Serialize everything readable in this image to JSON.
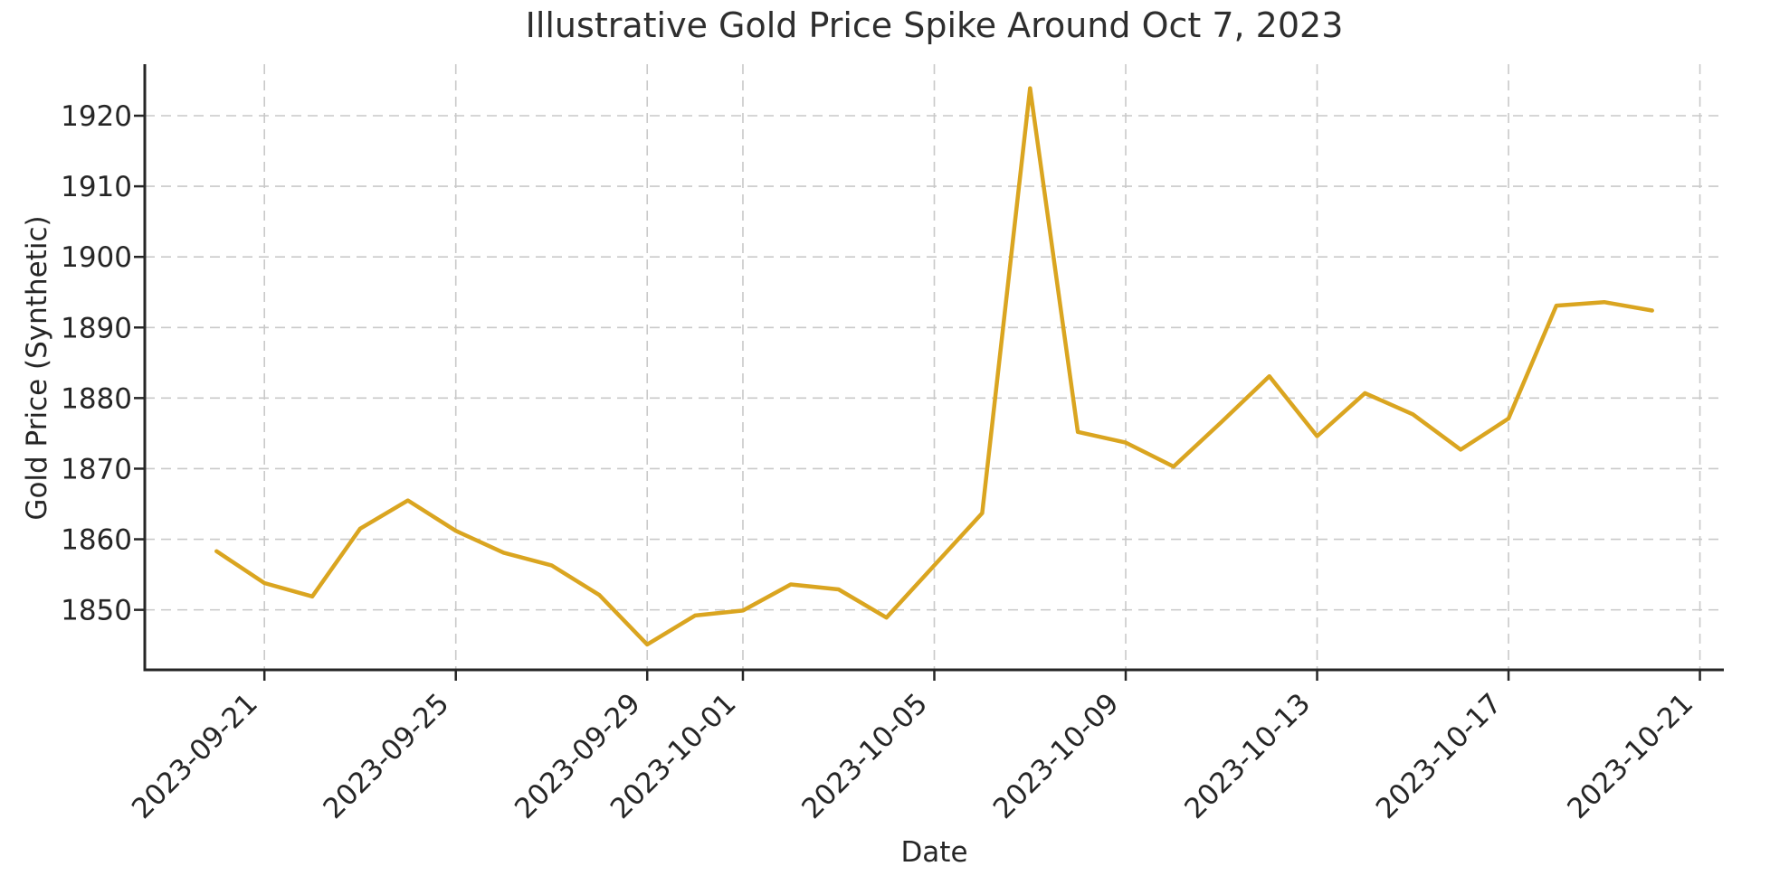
{
  "chart_data": {
    "type": "line",
    "title": "Illustrative Gold Price Spike Around Oct 7, 2023",
    "xlabel": "Date",
    "ylabel": "Gold Price (Synthetic)",
    "legend": "none",
    "grid": true,
    "grid_style": "dashed",
    "grid_color": "#c9c9c9",
    "line_color": "#DAA520",
    "line_width": 4.5,
    "axis_color": "#262626",
    "text_color": "#262626",
    "x": [
      "2023-09-20",
      "2023-09-21",
      "2023-09-22",
      "2023-09-23",
      "2023-09-24",
      "2023-09-25",
      "2023-09-26",
      "2023-09-27",
      "2023-09-28",
      "2023-09-29",
      "2023-09-30",
      "2023-10-01",
      "2023-10-02",
      "2023-10-03",
      "2023-10-04",
      "2023-10-05",
      "2023-10-06",
      "2023-10-07",
      "2023-10-08",
      "2023-10-09",
      "2023-10-10",
      "2023-10-11",
      "2023-10-12",
      "2023-10-13",
      "2023-10-14",
      "2023-10-15",
      "2023-10-16",
      "2023-10-17",
      "2023-10-18",
      "2023-10-19",
      "2023-10-20"
    ],
    "values": [
      1858.3,
      1853.8,
      1851.9,
      1861.5,
      1865.5,
      1861.2,
      1858.1,
      1856.3,
      1852.1,
      1845.1,
      1849.2,
      1849.9,
      1853.6,
      1852.9,
      1848.9,
      1856.3,
      1863.7,
      1923.9,
      1875.2,
      1873.7,
      1870.3,
      1876.6,
      1883.1,
      1874.6,
      1880.7,
      1877.7,
      1872.7,
      1877.1,
      1893.1,
      1893.6,
      1892.4
    ],
    "x_ticks": [
      {
        "label": "2023-09-21",
        "index": 1
      },
      {
        "label": "2023-09-25",
        "index": 5
      },
      {
        "label": "2023-09-29",
        "index": 9
      },
      {
        "label": "2023-10-01",
        "index": 11
      },
      {
        "label": "2023-10-05",
        "index": 15
      },
      {
        "label": "2023-10-09",
        "index": 19
      },
      {
        "label": "2023-10-13",
        "index": 23
      },
      {
        "label": "2023-10-17",
        "index": 27
      },
      {
        "label": "2023-10-21",
        "index": 31
      }
    ],
    "y_ticks": [
      1850,
      1860,
      1870,
      1880,
      1890,
      1900,
      1910,
      1920
    ],
    "x_tick_rotation_deg": 45,
    "xlim_index": [
      -1.5,
      31.5
    ],
    "ylim": [
      1841.5,
      1927.3
    ]
  }
}
